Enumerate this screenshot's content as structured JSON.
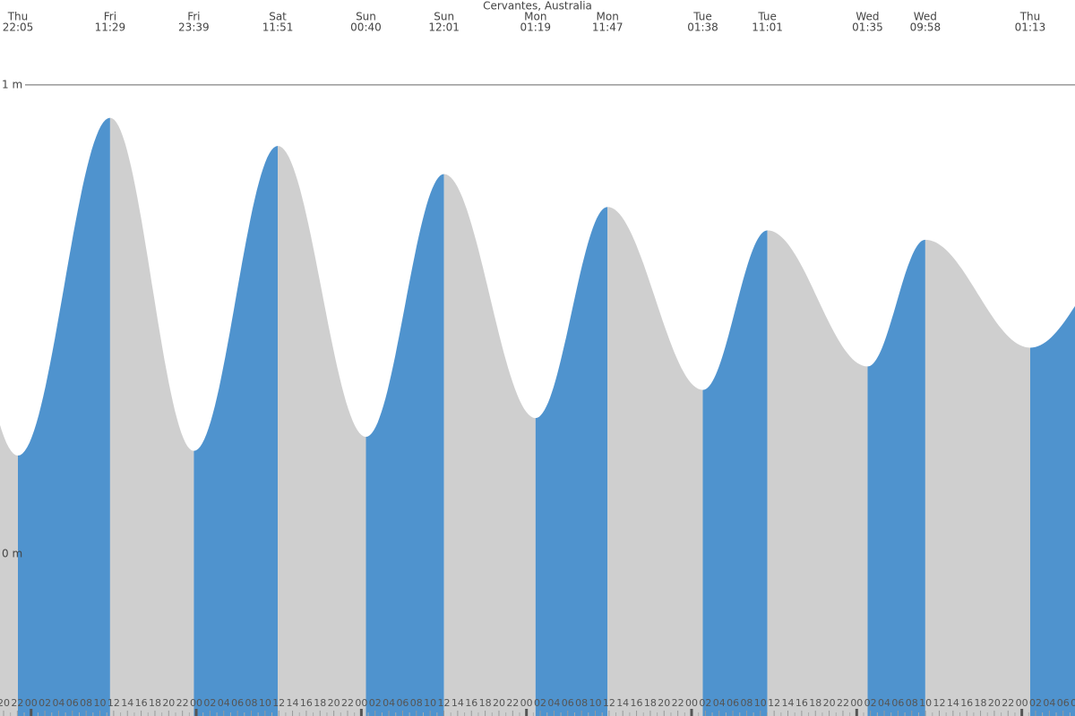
{
  "chart_data": {
    "type": "tide",
    "title": "Cervantes, Australia",
    "extremes": [
      {
        "day": "Thu",
        "time": "22:05",
        "height": 0.21
      },
      {
        "day": "Fri",
        "time": "11:29",
        "height": 0.93
      },
      {
        "day": "Fri",
        "time": "23:39",
        "height": 0.22
      },
      {
        "day": "Sat",
        "time": "11:51",
        "height": 0.87
      },
      {
        "day": "Sun",
        "time": "00:40",
        "height": 0.25
      },
      {
        "day": "Sun",
        "time": "12:01",
        "height": 0.81
      },
      {
        "day": "Mon",
        "time": "01:19",
        "height": 0.29
      },
      {
        "day": "Mon",
        "time": "11:47",
        "height": 0.74
      },
      {
        "day": "Tue",
        "time": "01:38",
        "height": 0.35
      },
      {
        "day": "Tue",
        "time": "11:01",
        "height": 0.69
      },
      {
        "day": "Wed",
        "time": "01:35",
        "height": 0.4
      },
      {
        "day": "Wed",
        "time": "09:58",
        "height": 0.67
      },
      {
        "day": "Thu",
        "time": "01:13",
        "height": 0.44
      }
    ],
    "ylim": [
      -0.345,
      1.181
    ],
    "yticks": [
      {
        "value": 1,
        "label": "1 m"
      },
      {
        "value": 0,
        "label": "0 m"
      }
    ],
    "hour_labels": [
      "00",
      "02",
      "04",
      "06",
      "08",
      "10",
      "12",
      "14",
      "16",
      "18",
      "20",
      "22"
    ],
    "rising_color": "#4f93ce",
    "falling_color": "#cfcfcf"
  }
}
